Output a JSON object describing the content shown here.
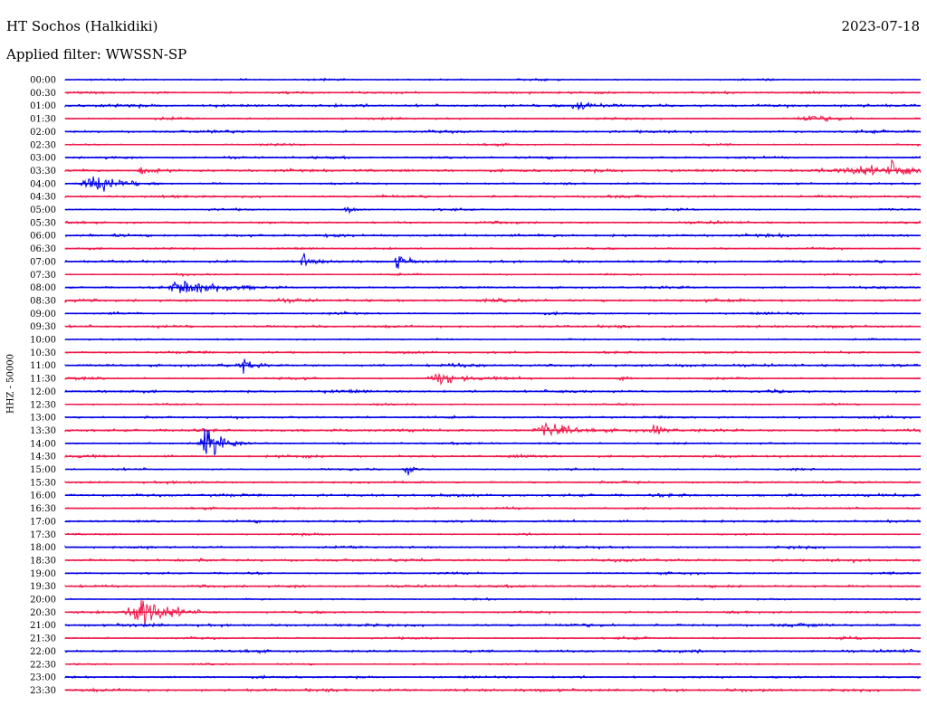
{
  "header": {
    "station": "HT Sochos (Halkidiki)",
    "date": "2023-07-18",
    "filter": "Applied filter: WWSSN-SP"
  },
  "chart_data": {
    "type": "line",
    "title": "HT Sochos (Halkidiki)",
    "ylabel": "HHZ - 50000",
    "colors": [
      "#0000e6",
      "#f0184a"
    ],
    "row_labels": [
      "00:00",
      "00:30",
      "01:00",
      "01:30",
      "02:00",
      "02:30",
      "03:00",
      "03:30",
      "04:00",
      "04:30",
      "05:00",
      "05:30",
      "06:00",
      "06:30",
      "07:00",
      "07:30",
      "08:00",
      "08:30",
      "09:00",
      "09:30",
      "10:00",
      "10:30",
      "11:00",
      "11:30",
      "12:00",
      "12:30",
      "13:00",
      "13:30",
      "14:00",
      "14:30",
      "15:00",
      "15:30",
      "16:00",
      "16:30",
      "17:00",
      "17:30",
      "18:00",
      "18:30",
      "19:00",
      "19:30",
      "20:00",
      "20:30",
      "21:00",
      "21:30",
      "22:00",
      "22:30",
      "23:00",
      "23:30"
    ],
    "events": [
      {
        "row": 2,
        "pos": 0.6,
        "amp": 7,
        "width": 0.02
      },
      {
        "row": 3,
        "pos": 0.87,
        "amp": 5,
        "width": 0.03
      },
      {
        "row": 7,
        "pos": 0.09,
        "amp": 7,
        "width": 0.01
      },
      {
        "row": 7,
        "pos": 0.93,
        "amp": 7,
        "width": 0.06
      },
      {
        "row": 7,
        "pos": 0.97,
        "amp": 12,
        "width": 0.02
      },
      {
        "row": 8,
        "pos": 0.035,
        "amp": 14,
        "width": 0.03
      },
      {
        "row": 10,
        "pos": 0.33,
        "amp": 6,
        "width": 0.01
      },
      {
        "row": 14,
        "pos": 0.28,
        "amp": 11,
        "width": 0.01
      },
      {
        "row": 14,
        "pos": 0.39,
        "amp": 12,
        "width": 0.01
      },
      {
        "row": 16,
        "pos": 0.14,
        "amp": 14,
        "width": 0.04
      },
      {
        "row": 22,
        "pos": 0.21,
        "amp": 9,
        "width": 0.01
      },
      {
        "row": 23,
        "pos": 0.44,
        "amp": 10,
        "width": 0.03
      },
      {
        "row": 23,
        "pos": 0.65,
        "amp": 7,
        "width": 0.01
      },
      {
        "row": 27,
        "pos": 0.565,
        "amp": 11,
        "width": 0.03
      },
      {
        "row": 27,
        "pos": 0.69,
        "amp": 9,
        "width": 0.01
      },
      {
        "row": 28,
        "pos": 0.165,
        "amp": 40,
        "width": 0.015
      },
      {
        "row": 30,
        "pos": 0.4,
        "amp": 8,
        "width": 0.01
      },
      {
        "row": 41,
        "pos": 0.09,
        "amp": 30,
        "width": 0.03
      }
    ],
    "grid": false
  }
}
